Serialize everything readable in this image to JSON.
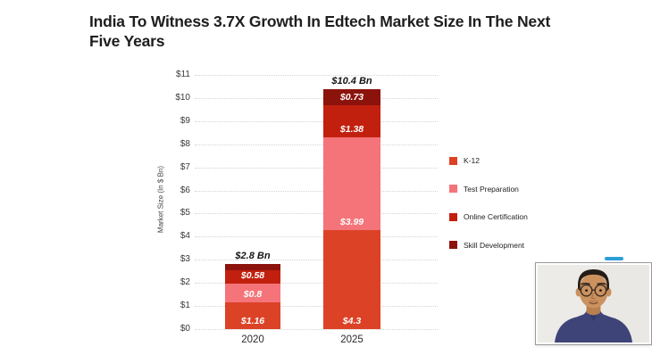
{
  "title": "India To Witness 3.7X Growth In Edtech Market Size In The Next Five Years",
  "chart_data": {
    "type": "bar",
    "stacked": true,
    "title": "India To Witness 3.7X Growth In Edtech Market Size In The Next Five Years",
    "categories": [
      "2020",
      "2025"
    ],
    "series": [
      {
        "name": "K-12",
        "color": "#dc4226",
        "values": [
          1.16,
          4.3
        ],
        "labels": [
          "$1.16",
          "$4.3"
        ]
      },
      {
        "name": "Test Preparation",
        "color": "#f4747a",
        "values": [
          0.8,
          3.99
        ],
        "labels": [
          "$0.8",
          "$3.99"
        ]
      },
      {
        "name": "Online Certification",
        "color": "#c2200f",
        "values": [
          0.58,
          1.38
        ],
        "labels": [
          "$0.58",
          "$1.38"
        ]
      },
      {
        "name": "Skill Development",
        "color": "#8b130c",
        "values": [
          0.26,
          0.73
        ],
        "labels": [
          "",
          "$0.73"
        ]
      }
    ],
    "totals": [
      "$2.8 Bn",
      "$10.4 Bn"
    ],
    "xlabel": "",
    "ylabel": "Market Size (In $ Bn)",
    "ylim": [
      0,
      11
    ],
    "ytick_step": 1,
    "ytick_prefix": "$",
    "grid": "horizontal-dotted",
    "legend_position": "right"
  },
  "decor": {
    "accent_bar_color": "#2d9fd8"
  }
}
